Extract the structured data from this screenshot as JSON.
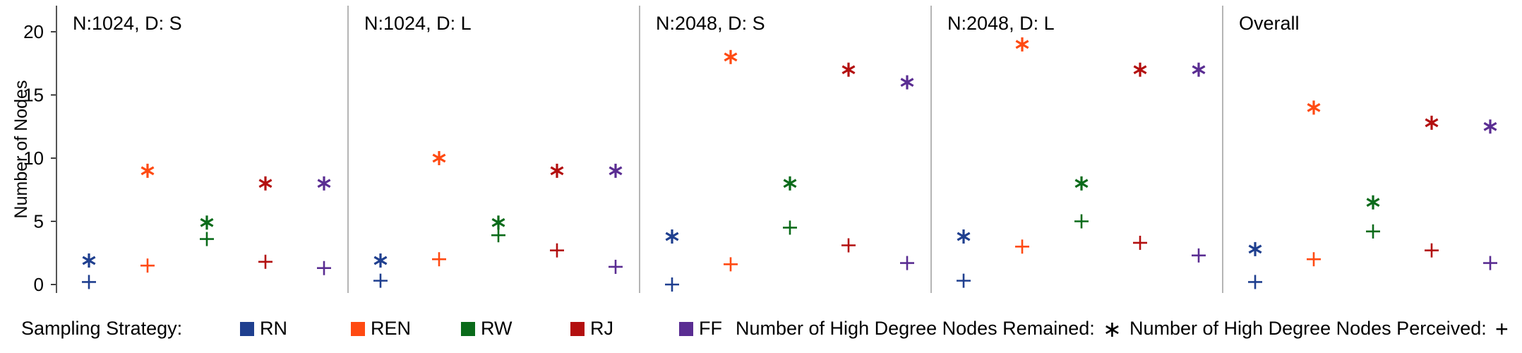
{
  "chart_data": {
    "type": "scatter",
    "ylabel": "Number of Nodes",
    "ylim": [
      0,
      21
    ],
    "yticks": [
      "0",
      "5",
      "10",
      "15",
      "20"
    ],
    "grid": false,
    "strategies": [
      "RN",
      "REN",
      "RW",
      "RJ",
      "FF"
    ],
    "colors": {
      "RN": "#1f3f8f",
      "REN": "#ff4a12",
      "RW": "#0a6b1a",
      "RJ": "#b30f0f",
      "FF": "#5a2d92"
    },
    "panels": [
      {
        "title": "N:1024, D: S",
        "remained": [
          1.9,
          9.0,
          4.9,
          8.0,
          8.0
        ],
        "perceived": [
          0.2,
          1.5,
          3.6,
          1.8,
          1.3
        ]
      },
      {
        "title": "N:1024, D: L",
        "remained": [
          1.9,
          10.0,
          4.9,
          9.0,
          9.0
        ],
        "perceived": [
          0.3,
          2.0,
          3.9,
          2.7,
          1.4
        ]
      },
      {
        "title": "N:2048, D: S",
        "remained": [
          3.8,
          18.0,
          8.0,
          17.0,
          16.0
        ],
        "perceived": [
          0.0,
          1.6,
          4.5,
          3.1,
          1.7
        ]
      },
      {
        "title": "N:2048, D: L",
        "remained": [
          3.8,
          19.0,
          8.0,
          17.0,
          17.0
        ],
        "perceived": [
          0.3,
          3.0,
          5.0,
          3.3,
          2.3
        ]
      },
      {
        "title": "Overall",
        "remained": [
          2.8,
          14.0,
          6.5,
          12.8,
          12.5
        ],
        "perceived": [
          0.2,
          2.0,
          4.2,
          2.7,
          1.7
        ]
      }
    ]
  },
  "legend": {
    "sampling_label": "Sampling Strategy:",
    "items": [
      "RN",
      "REN",
      "RW",
      "RJ",
      "FF"
    ],
    "remained_label": "Number of High Degree Nodes Remained:",
    "remained_symbol": "∗",
    "perceived_label": "Number of High Degree Nodes Perceived:",
    "perceived_symbol": "+"
  }
}
